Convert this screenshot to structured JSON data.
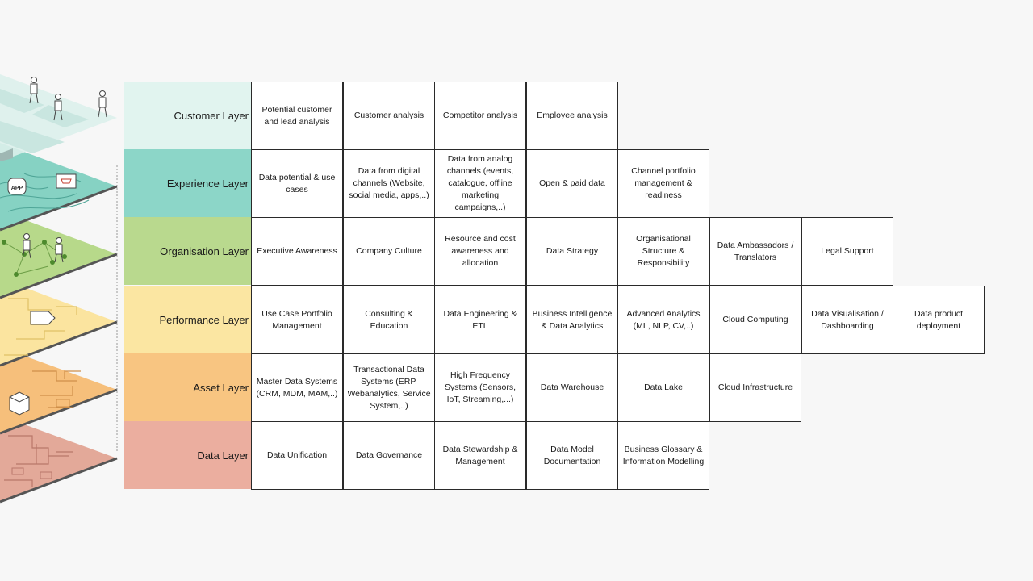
{
  "colors": {
    "customer": "#e1f4ef",
    "experience": "#8cd6c8",
    "organisation": "#b9d98e",
    "performance": "#fbe6a2",
    "asset": "#f8c581",
    "data": "#ebae9f"
  },
  "layers": [
    {
      "key": "customer",
      "name": "Customer Layer",
      "items": [
        "Potential customer and lead analysis",
        "Customer analysis",
        "Competitor analysis",
        "Employee analysis"
      ]
    },
    {
      "key": "experience",
      "name": "Experience Layer",
      "items": [
        "Data potential & use cases",
        "Data from digital channels (Website, social media, apps,..)",
        "Data from analog channels (events, catalogue, offline marketing campaigns,..)",
        "Open & paid data",
        "Channel portfolio management & readiness"
      ]
    },
    {
      "key": "organisation",
      "name": "Organisation Layer",
      "items": [
        "Executive Awareness",
        "Company Culture",
        "Resource and cost awareness and allocation",
        "Data Strategy",
        "Organisational Structure & Responsibility",
        "Data Ambassadors / Translators",
        "Legal Support"
      ]
    },
    {
      "key": "performance",
      "name": "Performance Layer",
      "items": [
        "Use Case Portfolio Management",
        "Consulting & Education",
        "Data Engineering & ETL",
        "Business Intelligence & Data Analytics",
        "Advanced Analytics (ML, NLP, CV,..)",
        "Cloud Computing",
        "Data Visualisation / Dashboarding",
        "Data product deployment"
      ]
    },
    {
      "key": "asset",
      "name": "Asset Layer",
      "items": [
        "Master Data Systems (CRM, MDM, MAM,..)",
        "Transactional Data Systems (ERP, Webanalytics, Service System,..)",
        "High Frequency Systems (Sensors, IoT, Streaming,...)",
        "Data Warehouse",
        "Data Lake",
        "Cloud Infrastructure"
      ]
    },
    {
      "key": "data",
      "name": "Data Layer",
      "items": [
        "Data Unification",
        "Data Governance",
        "Data Stewardship & Management",
        "Data Model Documentation",
        "Business Glossary & Information Modelling"
      ]
    }
  ],
  "illustration": {
    "icons": [
      "person-icon",
      "app-icon",
      "cart-icon",
      "tag-icon",
      "cube-icon"
    ],
    "app_text": "APP"
  }
}
